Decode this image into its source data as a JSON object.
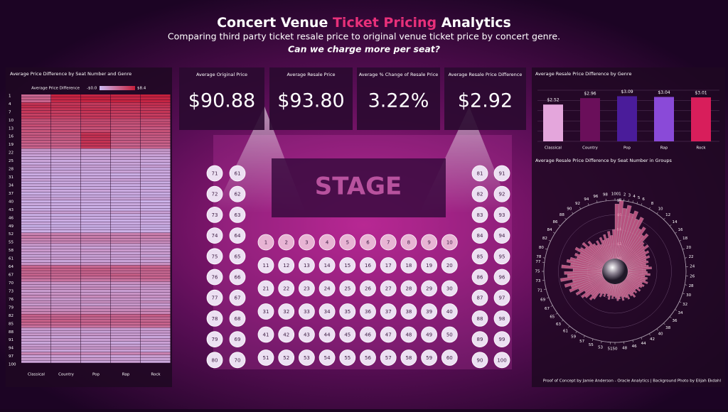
{
  "header": {
    "title_parts": [
      "Concert Venue",
      "Ticket Pricing",
      "Analytics"
    ],
    "subtitle": "Comparing third party ticket resale price to original venue ticket price by concert genre.",
    "question": "Can we charge more per seat?"
  },
  "kpis": [
    {
      "label": "Average Original Price",
      "value": "$90.88"
    },
    {
      "label": "Average Resale Price",
      "value": "$93.80"
    },
    {
      "label": "Average % Change of Resale Price",
      "value": "3.22%"
    },
    {
      "label": "Average Resale Price Difference",
      "value": "$2.92"
    }
  ],
  "seat_map": {
    "stage": "STAGE",
    "seats": [
      1,
      2,
      3,
      4,
      5,
      6,
      7,
      8,
      9,
      10,
      11,
      12,
      13,
      14,
      15,
      16,
      17,
      18,
      19,
      20,
      21,
      22,
      23,
      24,
      25,
      26,
      27,
      28,
      29,
      30,
      31,
      32,
      33,
      34,
      35,
      36,
      37,
      38,
      39,
      40,
      41,
      42,
      43,
      44,
      45,
      46,
      47,
      48,
      49,
      50,
      51,
      52,
      53,
      54,
      55,
      56,
      57,
      58,
      59,
      60,
      61,
      62,
      63,
      64,
      65,
      66,
      67,
      68,
      69,
      70,
      71,
      72,
      73,
      74,
      75,
      76,
      77,
      78,
      79,
      80,
      81,
      82,
      83,
      84,
      85,
      86,
      87,
      88,
      89,
      90,
      91,
      92,
      93,
      94,
      95,
      96,
      97,
      98,
      99,
      100
    ]
  },
  "footer": "Proof of Concept by Jamie Anderson - Oracle Analytics  |  Background Photo by Elijah Ekdahl",
  "chart_data": [
    {
      "type": "heatmap",
      "title": "Average Price Difference by Seat Number and Genre",
      "legend": {
        "label": "Average Price Difference",
        "min": {
          "value": -0.04,
          "label": "-$0.0"
        },
        "max": {
          "value": 8.4,
          "label": "$8.4"
        },
        "colors": [
          "#cbbaf2",
          "#c41e3a"
        ]
      },
      "columns": [
        "Classical",
        "Country",
        "Pop",
        "Rap",
        "Rock"
      ],
      "row_labels": [
        1,
        4,
        7,
        10,
        13,
        16,
        19,
        22,
        25,
        28,
        31,
        34,
        37,
        40,
        43,
        46,
        49,
        52,
        55,
        58,
        61,
        64,
        67,
        70,
        73,
        76,
        79,
        82,
        85,
        88,
        91,
        94,
        97,
        100
      ],
      "z": [
        [
          4.5,
          8.2,
          8.0,
          8.1,
          8.3
        ],
        [
          4.8,
          8.0,
          8.3,
          7.9,
          8.1
        ],
        [
          4.6,
          7.8,
          8.1,
          8.2,
          8.0
        ],
        [
          7.2,
          7.0,
          6.8,
          7.1,
          7.4
        ],
        [
          7.5,
          7.3,
          7.0,
          6.9,
          7.2
        ],
        [
          6.9,
          7.1,
          7.3,
          7.0,
          6.8
        ],
        [
          7.0,
          6.6,
          7.2,
          6.9,
          7.1
        ],
        [
          6.5,
          6.8,
          6.9,
          6.6,
          6.7
        ],
        [
          6.8,
          6.4,
          7.0,
          6.7,
          6.9
        ],
        [
          5.6,
          5.8,
          6.0,
          5.7,
          5.5
        ],
        [
          5.4,
          5.5,
          5.9,
          5.6,
          5.8
        ],
        [
          5.8,
          5.6,
          6.1,
          5.4,
          5.7
        ],
        [
          5.2,
          5.3,
          5.6,
          5.5,
          5.1
        ],
        [
          5.5,
          5.7,
          6.0,
          5.3,
          5.6
        ],
        [
          5.1,
          5.2,
          7.2,
          5.0,
          5.3
        ],
        [
          5.3,
          5.0,
          7.4,
          5.2,
          5.1
        ],
        [
          4.9,
          5.1,
          7.0,
          4.8,
          5.0
        ],
        [
          5.0,
          4.8,
          7.3,
          5.1,
          4.9
        ],
        [
          4.7,
          4.9,
          7.1,
          4.6,
          4.8
        ],
        [
          4.8,
          4.7,
          6.9,
          4.9,
          4.6
        ],
        [
          1.6,
          1.8,
          1.5,
          1.7,
          1.6
        ],
        [
          1.4,
          1.5,
          1.6,
          1.3,
          1.5
        ],
        [
          1.2,
          1.4,
          1.3,
          1.5,
          1.2
        ],
        [
          1.0,
          1.2,
          1.1,
          1.3,
          1.0
        ],
        [
          1.1,
          0.9,
          1.2,
          1.0,
          1.1
        ],
        [
          0.8,
          1.0,
          0.9,
          1.1,
          0.8
        ],
        [
          1.3,
          1.1,
          1.2,
          1.0,
          1.3
        ],
        [
          0.9,
          0.8,
          1.0,
          0.9,
          0.7
        ],
        [
          1.0,
          1.1,
          0.9,
          1.2,
          1.0
        ],
        [
          0.7,
          0.9,
          0.8,
          0.6,
          0.8
        ],
        [
          0.8,
          0.7,
          0.9,
          0.8,
          0.9
        ],
        [
          1.2,
          1.0,
          1.1,
          1.3,
          1.1
        ],
        [
          0.6,
          0.8,
          0.7,
          0.9,
          0.6
        ],
        [
          0.9,
          1.0,
          0.8,
          0.7,
          0.9
        ],
        [
          0.7,
          0.6,
          0.8,
          0.7,
          0.5
        ],
        [
          1.0,
          0.9,
          1.1,
          0.8,
          1.0
        ],
        [
          0.5,
          0.7,
          0.6,
          0.8,
          0.6
        ],
        [
          0.8,
          0.6,
          0.7,
          0.5,
          0.7
        ],
        [
          1.1,
          1.2,
          1.0,
          1.1,
          1.2
        ],
        [
          0.6,
          0.5,
          0.7,
          0.6,
          0.4
        ],
        [
          0.9,
          0.8,
          0.7,
          0.9,
          0.8
        ],
        [
          0.4,
          0.6,
          0.5,
          0.7,
          0.5
        ],
        [
          0.7,
          0.8,
          0.6,
          0.5,
          0.6
        ],
        [
          1.3,
          1.4,
          1.2,
          1.5,
          1.3
        ],
        [
          0.5,
          0.4,
          0.6,
          0.5,
          0.7
        ],
        [
          0.8,
          0.9,
          0.7,
          0.8,
          0.6
        ],
        [
          0.6,
          0.7,
          0.5,
          0.6,
          0.8
        ],
        [
          0.9,
          0.6,
          0.8,
          0.7,
          0.9
        ],
        [
          0.3,
          0.5,
          0.4,
          0.6,
          0.4
        ],
        [
          0.7,
          0.8,
          0.6,
          0.7,
          0.5
        ],
        [
          0.5,
          0.6,
          0.7,
          0.4,
          0.6
        ],
        [
          3.0,
          3.2,
          2.9,
          3.1,
          3.3
        ],
        [
          3.4,
          3.1,
          3.3,
          3.0,
          3.2
        ],
        [
          2.8,
          3.0,
          3.1,
          2.9,
          2.7
        ],
        [
          2.5,
          2.7,
          2.6,
          2.8,
          2.4
        ],
        [
          1.6,
          1.4,
          1.7,
          1.5,
          1.6
        ],
        [
          1.3,
          1.5,
          1.2,
          1.4,
          1.3
        ],
        [
          1.8,
          1.6,
          1.9,
          1.7,
          1.5
        ],
        [
          1.4,
          1.3,
          1.5,
          1.2,
          1.6
        ],
        [
          1.1,
          1.3,
          1.2,
          1.4,
          1.0
        ],
        [
          1.5,
          1.6,
          1.4,
          1.3,
          1.7
        ],
        [
          1.2,
          1.0,
          1.3,
          1.1,
          1.2
        ],
        [
          2.0,
          1.8,
          2.1,
          1.9,
          2.2
        ],
        [
          4.5,
          4.7,
          4.4,
          4.8,
          4.6
        ],
        [
          4.8,
          4.6,
          4.9,
          4.5,
          4.7
        ],
        [
          4.3,
          4.5,
          4.6,
          4.2,
          4.4
        ],
        [
          4.6,
          4.4,
          4.7,
          4.9,
          4.5
        ],
        [
          4.2,
          4.3,
          4.1,
          4.4,
          4.6
        ],
        [
          3.6,
          3.8,
          3.5,
          3.7,
          3.9
        ],
        [
          2.0,
          2.2,
          1.9,
          2.1,
          2.3
        ],
        [
          1.8,
          1.7,
          2.0,
          1.6,
          1.9
        ],
        [
          2.2,
          2.0,
          2.3,
          2.1,
          1.8
        ],
        [
          1.5,
          1.7,
          1.6,
          1.4,
          1.8
        ],
        [
          1.9,
          2.1,
          1.8,
          2.0,
          1.7
        ],
        [
          2.4,
          2.2,
          2.5,
          2.3,
          2.1
        ],
        [
          1.7,
          1.6,
          1.8,
          1.9,
          1.5
        ],
        [
          2.1,
          1.9,
          2.2,
          2.0,
          2.3
        ],
        [
          1.6,
          1.8,
          1.5,
          1.7,
          1.4
        ],
        [
          2.3,
          2.1,
          2.4,
          2.2,
          2.0
        ],
        [
          2.6,
          2.4,
          2.7,
          2.5,
          2.8
        ],
        [
          2.9,
          3.1,
          2.8,
          3.0,
          2.7
        ],
        [
          4.7,
          4.5,
          4.8,
          4.6,
          4.9
        ],
        [
          4.4,
          4.6,
          4.3,
          4.5,
          4.2
        ],
        [
          4.8,
          4.9,
          4.6,
          4.7,
          4.5
        ],
        [
          4.5,
          4.3,
          4.6,
          4.4,
          4.7
        ],
        [
          3.9,
          4.1,
          3.8,
          4.0,
          4.2
        ],
        [
          1.6,
          1.4,
          1.7,
          1.5,
          1.3
        ],
        [
          1.3,
          1.5,
          1.2,
          1.4,
          1.6
        ],
        [
          1.7,
          1.6,
          1.8,
          1.5,
          1.4
        ],
        [
          1.2,
          1.1,
          1.3,
          1.4,
          1.0
        ],
        [
          1.5,
          1.7,
          1.4,
          1.6,
          1.8
        ],
        [
          1.0,
          1.2,
          1.1,
          0.9,
          1.3
        ],
        [
          1.4,
          1.3,
          1.5,
          1.2,
          1.1
        ],
        [
          1.8,
          1.9,
          1.7,
          2.0,
          1.6
        ],
        [
          1.1,
          1.0,
          1.2,
          1.3,
          0.9
        ],
        [
          2.8,
          3.0,
          2.7,
          2.9,
          3.1
        ],
        [
          1.3,
          1.4,
          1.2,
          1.1,
          1.5
        ],
        [
          1.6,
          1.5,
          1.7,
          1.4,
          1.3
        ],
        [
          1.2,
          1.3,
          1.1,
          1.4,
          1.0
        ]
      ]
    },
    {
      "type": "bar",
      "title": "Average Resale Price Difference by Genre",
      "categories": [
        "Classical",
        "Country",
        "Pop",
        "Rap",
        "Rock"
      ],
      "values": [
        2.52,
        2.96,
        3.09,
        3.04,
        3.01
      ],
      "value_labels": [
        "$2.52",
        "$2.96",
        "$3.09",
        "$3.04",
        "$3.01"
      ],
      "colors": [
        "#e4a6dc",
        "#6a0f5a",
        "#4a1c9a",
        "#8a4ad8",
        "#d81e5b"
      ],
      "ylim": [
        0,
        3.5
      ],
      "grid": true
    },
    {
      "type": "radial_bar",
      "title": "Average Resale Price Difference by Seat Number in Groups",
      "color": "#d0608e",
      "xlim": [
        0,
        100
      ],
      "angle_labels": [
        100,
        1,
        2,
        3,
        4,
        5,
        6,
        8,
        10,
        12,
        14,
        16,
        18,
        20,
        22,
        24,
        26,
        28,
        30,
        32,
        34,
        36,
        38,
        40,
        42,
        44,
        46,
        48,
        50,
        51,
        53,
        55,
        57,
        59,
        61,
        63,
        65,
        67,
        69,
        71,
        73,
        75,
        77,
        78,
        80,
        82,
        84,
        86,
        88,
        90,
        92,
        94,
        96,
        98
      ],
      "rlim": [
        0,
        8
      ],
      "rticks": [
        {
          "value": 0,
          "label": "$0"
        },
        {
          "value": 2,
          "label": "$2"
        },
        {
          "value": 4,
          "label": "$4"
        },
        {
          "value": 6,
          "label": "$6"
        },
        {
          "value": 8,
          "label": "$8"
        }
      ],
      "values": [
        7.5,
        8.0,
        7.0,
        7.5,
        6.5,
        7.0,
        6.0,
        6.5,
        5.0,
        5.5,
        4.5,
        5.0,
        3.8,
        3.5,
        4.0,
        3.2,
        3.6,
        3.0,
        3.4,
        2.8,
        3.0,
        2.6,
        2.9,
        3.3,
        2.5,
        2.7,
        3.1,
        2.4,
        2.8,
        2.6,
        3.0,
        2.3,
        2.7,
        2.5,
        2.2,
        2.6,
        2.0,
        2.4,
        2.1,
        2.7,
        2.3,
        1.9,
        2.5,
        2.2,
        2.0,
        2.4,
        1.8,
        2.1,
        2.3,
        1.9,
        1.7,
        2.0,
        1.6,
        2.2,
        1.8,
        1.5,
        2.0,
        1.7,
        2.3,
        1.9,
        3.0,
        3.4,
        2.8,
        3.6,
        4.0,
        3.2,
        4.4,
        3.8,
        5.0,
        4.6,
        5.4,
        4.2,
        5.8,
        4.8,
        5.2,
        4.0,
        5.6,
        4.4,
        5.0,
        4.6,
        3.8,
        4.2,
        3.6,
        4.5,
        3.9,
        3.4,
        4.1,
        3.2,
        3.7,
        3.0,
        2.6,
        3.1,
        2.4,
        3.3,
        2.8,
        3.5,
        2.9,
        3.8,
        3.2,
        4.0
      ]
    }
  ]
}
